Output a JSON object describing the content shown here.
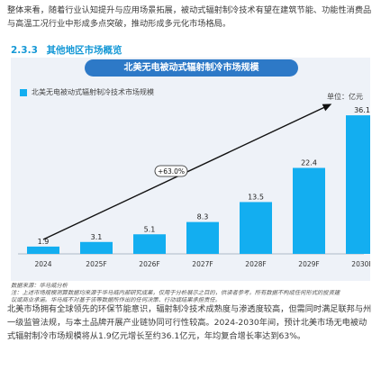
{
  "intro_text": "整体来看，随着行业认知提升与应用场景拓展，被动式辐射制冷技术有望在建筑节能、功能性消费品与高温工况行业中形成多点突破，推动形成多元化市场格局。",
  "section": {
    "number": "2.3.3",
    "title": "其他地区市场概览"
  },
  "chart_banner_title": "北美无电被动式辐射制冷市场规模",
  "unit_label": "单位：亿元",
  "cagr_label": "+63.0%",
  "colors": {
    "bar": "#13aef0",
    "banner": "#2d79c7",
    "section_title": "#1598d6",
    "card_bg": "#eef2f8",
    "arrow": "#111111"
  },
  "chart_data": {
    "type": "bar",
    "categories": [
      "2024",
      "2025F",
      "2026F",
      "2027F",
      "2028F",
      "2029F",
      "2030F"
    ],
    "series": [
      {
        "name": "北美无电被动式辐射制冷技术市场规模",
        "values": [
          1.9,
          3.1,
          5.1,
          8.3,
          13.5,
          22.4,
          36.1
        ]
      }
    ],
    "title": "北美无电被动式辐射制冷市场规模",
    "ylim": [
      0,
      38
    ],
    "grid": false,
    "legend": "top-left"
  },
  "notes": {
    "source": "数据来源：华马威分析",
    "lines": [
      "注：上述市场规模测算数据均来源于华马威内部研究成果，仅用于分析展示之目的，供读者参考。所有数据不构成任何形式的投资建",
      "议或商业承诺。华马威不对基于该等数据所作出的任何决策、行动或结果承担责任。"
    ]
  },
  "closing_text": "北美市场拥有全球领先的环保节能意识，辐射制冷技术成熟度与渗透度较高，但需同时满足联邦与州一级监管法规，与本土品牌开展产业链协同可行性较高。2024-2030年间，预计北美市场无电被动式辐射制冷市场规模将从1.9亿元增长至约36.1亿元，年均复合增长率达到63%。"
}
